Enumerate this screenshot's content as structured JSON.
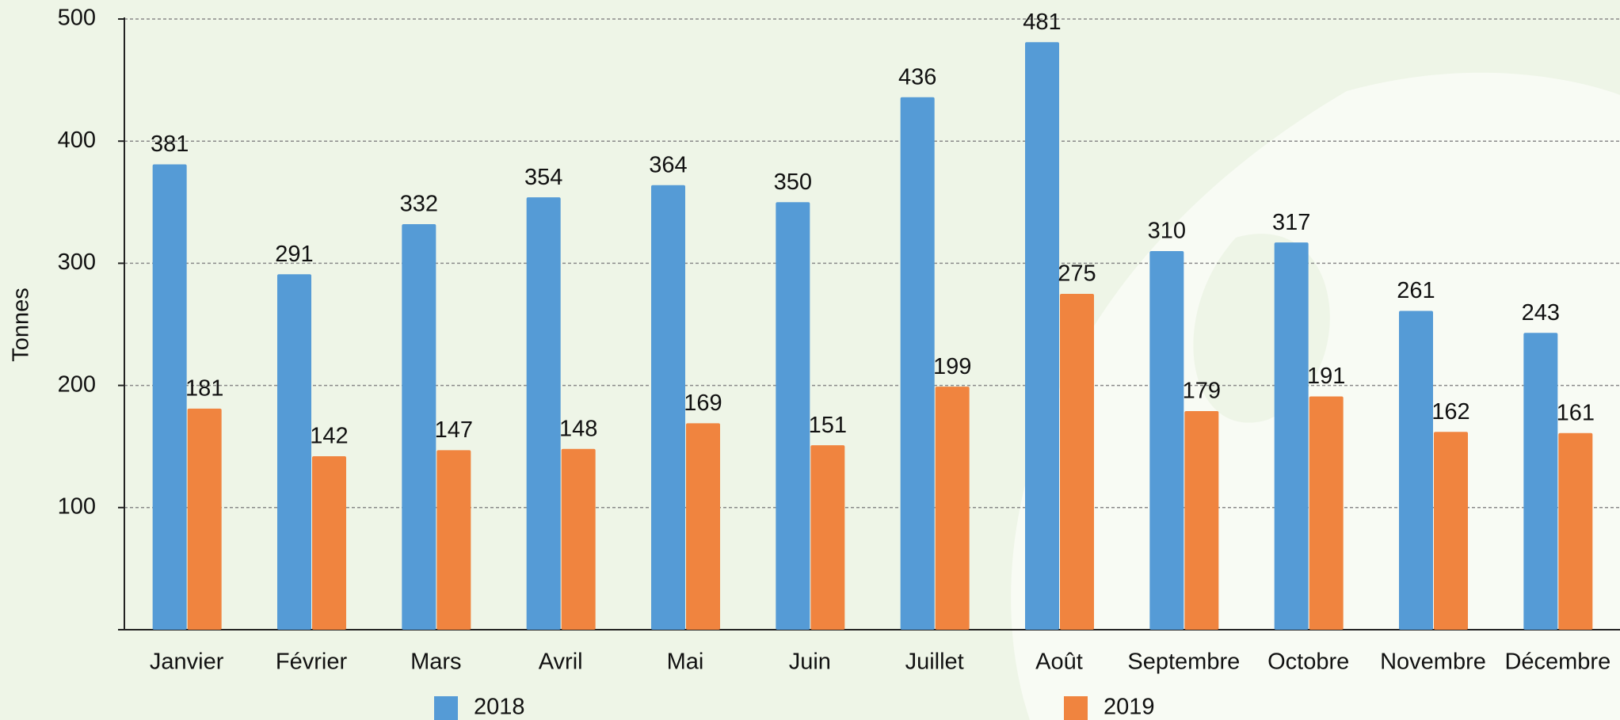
{
  "chart_data": {
    "type": "bar",
    "y_label": "Tonnes",
    "categories": [
      "Janvier",
      "Février",
      "Mars",
      "Avril",
      "Mai",
      "Juin",
      "Juillet",
      "Août",
      "Septembre",
      "Octobre",
      "Novembre",
      "Décembre"
    ],
    "series": [
      {
        "name": "2018",
        "color": "#559bd6",
        "values": [
          381,
          291,
          332,
          354,
          364,
          350,
          436,
          481,
          310,
          317,
          261,
          243
        ]
      },
      {
        "name": "2019",
        "color": "#f0843f",
        "values": [
          181,
          142,
          147,
          148,
          169,
          151,
          199,
          275,
          179,
          191,
          162,
          161
        ]
      }
    ],
    "ylim": [
      0,
      500
    ],
    "yticks": [
      100,
      200,
      300,
      400,
      500
    ],
    "grid": true
  }
}
